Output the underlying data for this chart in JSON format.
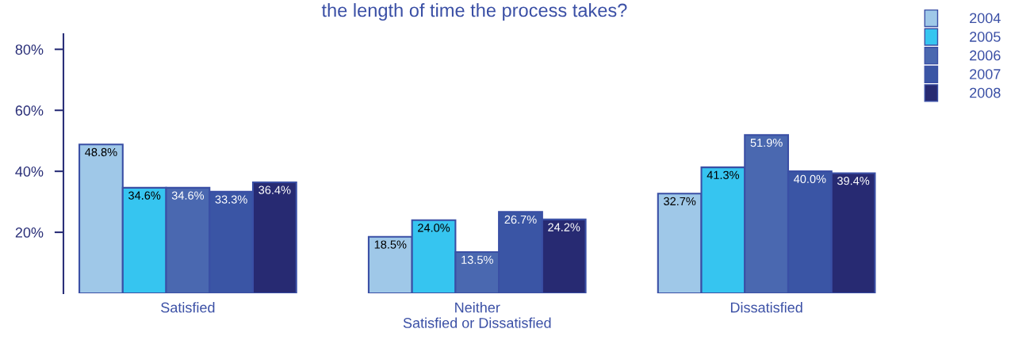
{
  "chart_data": {
    "type": "bar",
    "title": "the length of time the process takes?",
    "categories": [
      "Satisfied",
      "Neither\nSatisfied or Dissatisfied",
      "Dissatisfied"
    ],
    "series": [
      {
        "name": "2004",
        "color": "#9fc8e8",
        "values": [
          48.8,
          18.5,
          32.7
        ],
        "value_labels": [
          "48.8%",
          "18.5%",
          "32.7%"
        ]
      },
      {
        "name": "2005",
        "color": "#36c5f0",
        "values": [
          34.6,
          24.0,
          41.3
        ],
        "value_labels": [
          "34.6%",
          "24.0%",
          "41.3%"
        ]
      },
      {
        "name": "2006",
        "color": "#4a68b0",
        "values": [
          34.6,
          13.5,
          51.9
        ],
        "value_labels": [
          "34.6%",
          "13.5%",
          "51.9%"
        ]
      },
      {
        "name": "2007",
        "color": "#3a55a5",
        "values": [
          33.3,
          26.7,
          40.0
        ],
        "value_labels": [
          "33.3%",
          "26.7%",
          "40.0%"
        ]
      },
      {
        "name": "2008",
        "color": "#272a72",
        "values": [
          36.4,
          24.2,
          39.4
        ],
        "value_labels": [
          "36.4%",
          "24.2%",
          "39.4%"
        ]
      }
    ],
    "ylim": [
      0,
      85
    ],
    "yticks": [
      {
        "value": 20,
        "label": "20%"
      },
      {
        "value": 40,
        "label": "40%"
      },
      {
        "value": 60,
        "label": "60%"
      },
      {
        "value": 80,
        "label": "80%"
      }
    ],
    "grid": false,
    "legend": "top right"
  }
}
